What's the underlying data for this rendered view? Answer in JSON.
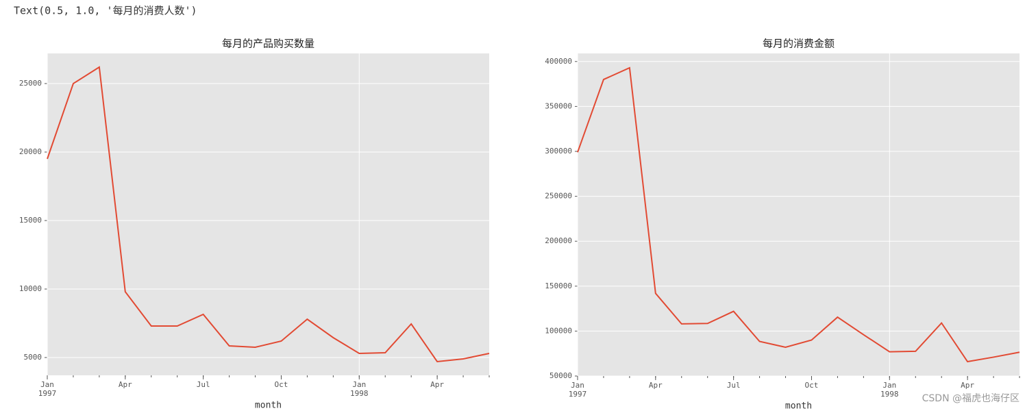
{
  "output_text": "Text(0.5, 1.0, '每月的消费人数')",
  "watermark": "CSDN @福虎也海仔区",
  "chart_data": [
    {
      "type": "line",
      "title": "每月的产品购买数量",
      "xlabel": "month",
      "x": [
        "1997-01",
        "1997-02",
        "1997-03",
        "1997-04",
        "1997-05",
        "1997-06",
        "1997-07",
        "1997-08",
        "1997-09",
        "1997-10",
        "1997-11",
        "1997-12",
        "1998-01",
        "1998-02",
        "1998-03",
        "1998-04",
        "1998-05",
        "1998-06"
      ],
      "xticks": [
        {
          "value": "1997-01",
          "label": "Jan",
          "year": "1997"
        },
        {
          "value": "1997-04",
          "label": "Apr"
        },
        {
          "value": "1997-07",
          "label": "Jul"
        },
        {
          "value": "1997-10",
          "label": "Oct"
        },
        {
          "value": "1998-01",
          "label": "Jan",
          "year": "1998"
        },
        {
          "value": "1998-04",
          "label": "Apr"
        }
      ],
      "xgrid": [
        "1997-01",
        "1998-01"
      ],
      "values": [
        19500,
        25000,
        26200,
        9800,
        7300,
        7300,
        8150,
        5850,
        5750,
        6200,
        7800,
        6450,
        5300,
        5350,
        7450,
        4700,
        4900,
        5300
      ],
      "color": "#e24a33",
      "ylim": [
        3700,
        27200
      ],
      "yticks": [
        5000,
        10000,
        15000,
        20000,
        25000
      ],
      "grid": true
    },
    {
      "type": "line",
      "title": "每月的消费金额",
      "xlabel": "month",
      "x": [
        "1997-01",
        "1997-02",
        "1997-03",
        "1997-04",
        "1997-05",
        "1997-06",
        "1997-07",
        "1997-08",
        "1997-09",
        "1997-10",
        "1997-11",
        "1997-12",
        "1998-01",
        "1998-02",
        "1998-03",
        "1998-04",
        "1998-05",
        "1998-06"
      ],
      "xticks": [
        {
          "value": "1997-01",
          "label": "Jan",
          "year": "1997"
        },
        {
          "value": "1997-04",
          "label": "Apr"
        },
        {
          "value": "1997-07",
          "label": "Jul"
        },
        {
          "value": "1997-10",
          "label": "Oct"
        },
        {
          "value": "1998-01",
          "label": "Jan",
          "year": "1998"
        },
        {
          "value": "1998-04",
          "label": "Apr"
        }
      ],
      "xgrid": [
        "1997-01",
        "1998-01"
      ],
      "values": [
        299000,
        380000,
        393000,
        142000,
        108000,
        108500,
        122000,
        88500,
        82000,
        90000,
        115500,
        96000,
        77000,
        77500,
        109000,
        66000,
        71000,
        76500
      ],
      "color": "#e24a33",
      "ylim": [
        50000,
        409000
      ],
      "yticks": [
        50000,
        100000,
        150000,
        200000,
        250000,
        300000,
        350000,
        400000
      ],
      "grid": true
    }
  ]
}
